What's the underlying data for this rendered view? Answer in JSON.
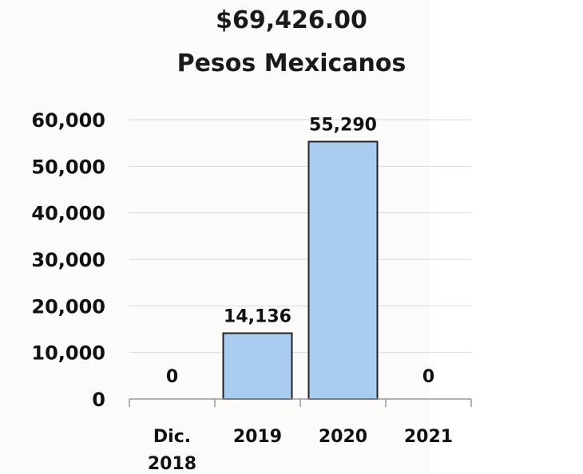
{
  "chart_data": {
    "type": "bar",
    "title": "$69,426.00",
    "subtitle": "Pesos Mexicanos",
    "xlabel": "",
    "ylabel": "",
    "categories": [
      "Dic. 2018",
      "2019",
      "2020",
      "2021"
    ],
    "category_lines": [
      [
        "Dic.",
        "2018"
      ],
      [
        "2019"
      ],
      [
        "2020"
      ],
      [
        "2021"
      ]
    ],
    "values": [
      0,
      14136,
      55290,
      0
    ],
    "data_labels": [
      "0",
      "14,136",
      "55,290",
      "0"
    ],
    "y_ticks": [
      0,
      10000,
      20000,
      30000,
      40000,
      50000,
      60000
    ],
    "y_tick_labels": [
      "0",
      "10,000",
      "20,000",
      "30,000",
      "40,000",
      "50,000",
      "60,000"
    ],
    "ylim": [
      0,
      60000
    ],
    "grid": true,
    "legend": "none",
    "colors": {
      "bar_fill": "#a9cdf0",
      "bar_stroke": "#222222",
      "grid": "#d9d9d9",
      "axis": "#999999"
    }
  }
}
